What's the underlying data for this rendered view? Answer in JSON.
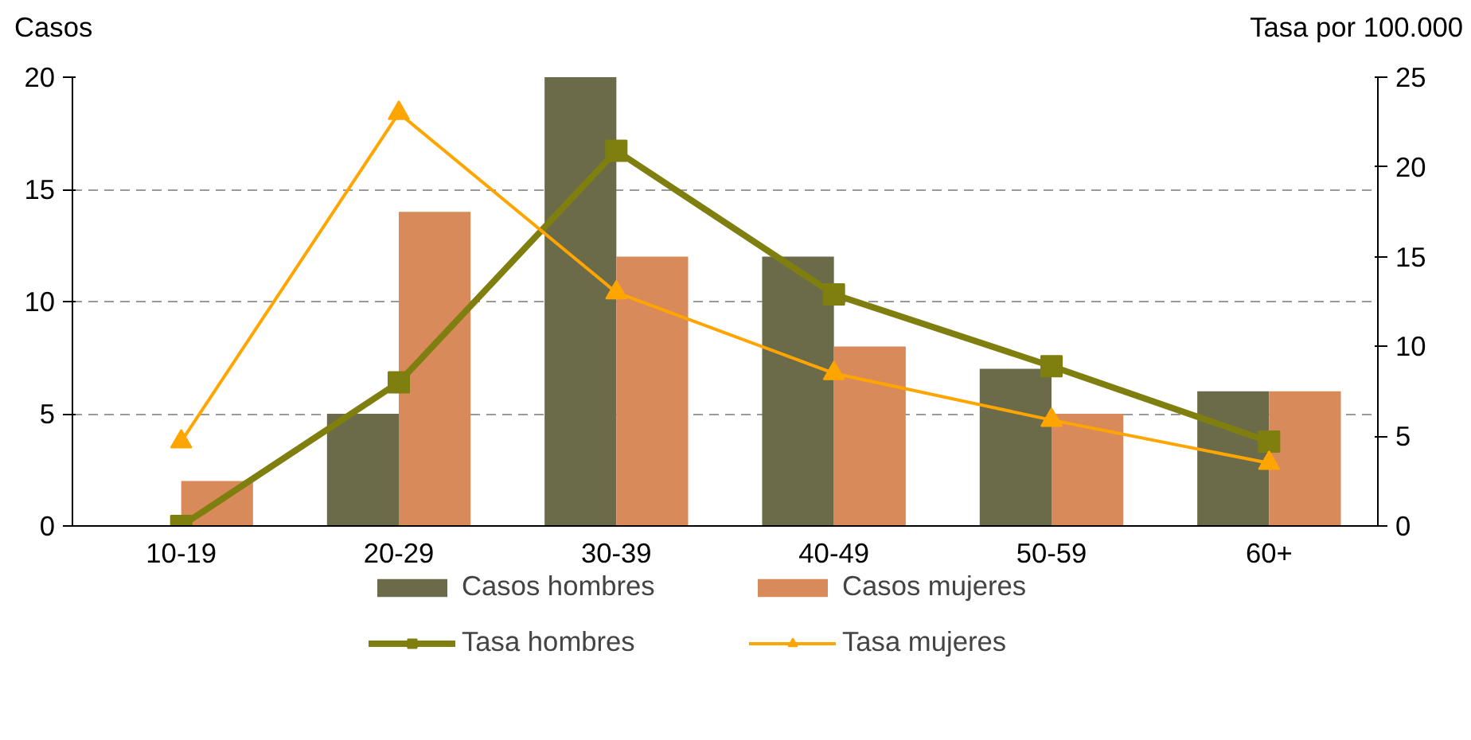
{
  "chart_data": {
    "type": "bar",
    "ylabel": "Casos",
    "y2label": "Tasa por 100.000",
    "categories": [
      "10-19",
      "20-29",
      "30-39",
      "40-49",
      "50-59",
      "60+"
    ],
    "series": [
      {
        "name": "Casos hombres",
        "color": "#6b6b4a",
        "values": [
          0,
          5,
          20,
          12,
          7,
          6
        ]
      },
      {
        "name": "Casos mujeres",
        "color": "#d98a5a",
        "values": [
          2,
          14,
          12,
          8,
          5,
          6
        ]
      },
      {
        "name": "Tasa hombres",
        "type": "line",
        "axis": "y2",
        "marker": "square",
        "color": "#7f7f0f",
        "values": [
          0,
          8.0,
          20.9,
          12.9,
          8.9,
          4.7
        ]
      },
      {
        "name": "Tasa mujeres",
        "type": "line",
        "axis": "y2",
        "marker": "triangle",
        "color": "#ffa500",
        "values": [
          4.7,
          23.0,
          13.0,
          8.5,
          5.9,
          3.5
        ]
      }
    ],
    "ylim": [
      0,
      20
    ],
    "yticks": [
      0,
      5,
      10,
      15,
      20
    ],
    "y2lim": [
      0,
      25
    ],
    "y2ticks": [
      0,
      5,
      10,
      15,
      20,
      25
    ],
    "grid": "y",
    "legend": "bottom"
  }
}
